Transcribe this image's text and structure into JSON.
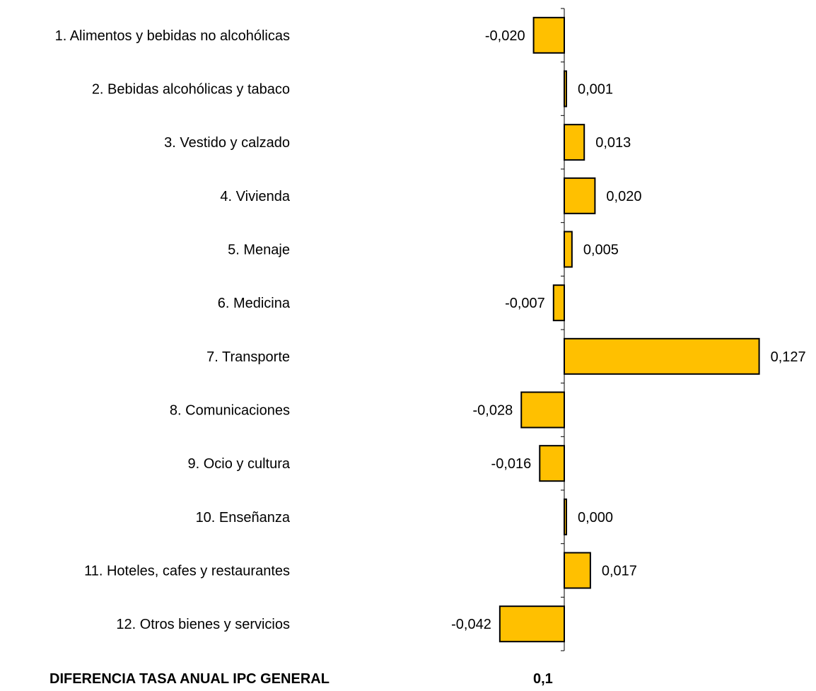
{
  "chart_data": {
    "type": "bar",
    "orientation": "horizontal",
    "categories": [
      "1. Alimentos y bebidas no alcohólicas",
      "2. Bebidas alcohólicas y tabaco",
      "3. Vestido y calzado",
      "4. Vivienda",
      "5. Menaje",
      "6. Medicina",
      "7. Transporte",
      "8. Comunicaciones",
      "9. Ocio y cultura",
      "10. Enseñanza",
      "11. Hoteles, cafes y restaurantes",
      "12. Otros bienes y servicios"
    ],
    "values": [
      -0.02,
      0.001,
      0.013,
      0.02,
      0.005,
      -0.007,
      0.127,
      -0.028,
      -0.016,
      0.0,
      0.017,
      -0.042
    ],
    "value_labels": [
      "-0,020",
      "0,001",
      "0,013",
      "0,020",
      "0,005",
      "-0,007",
      "0,127",
      "-0,028",
      "-0,016",
      "0,000",
      "0,017",
      "-0,042"
    ],
    "title": "",
    "xlabel": "",
    "ylabel": "",
    "grid": false,
    "legend": "none",
    "bar_color": "#FFC000",
    "bar_stroke": "#000000"
  },
  "footer": {
    "label": "DIFERENCIA TASA ANUAL IPC GENERAL",
    "value": "0,1"
  }
}
